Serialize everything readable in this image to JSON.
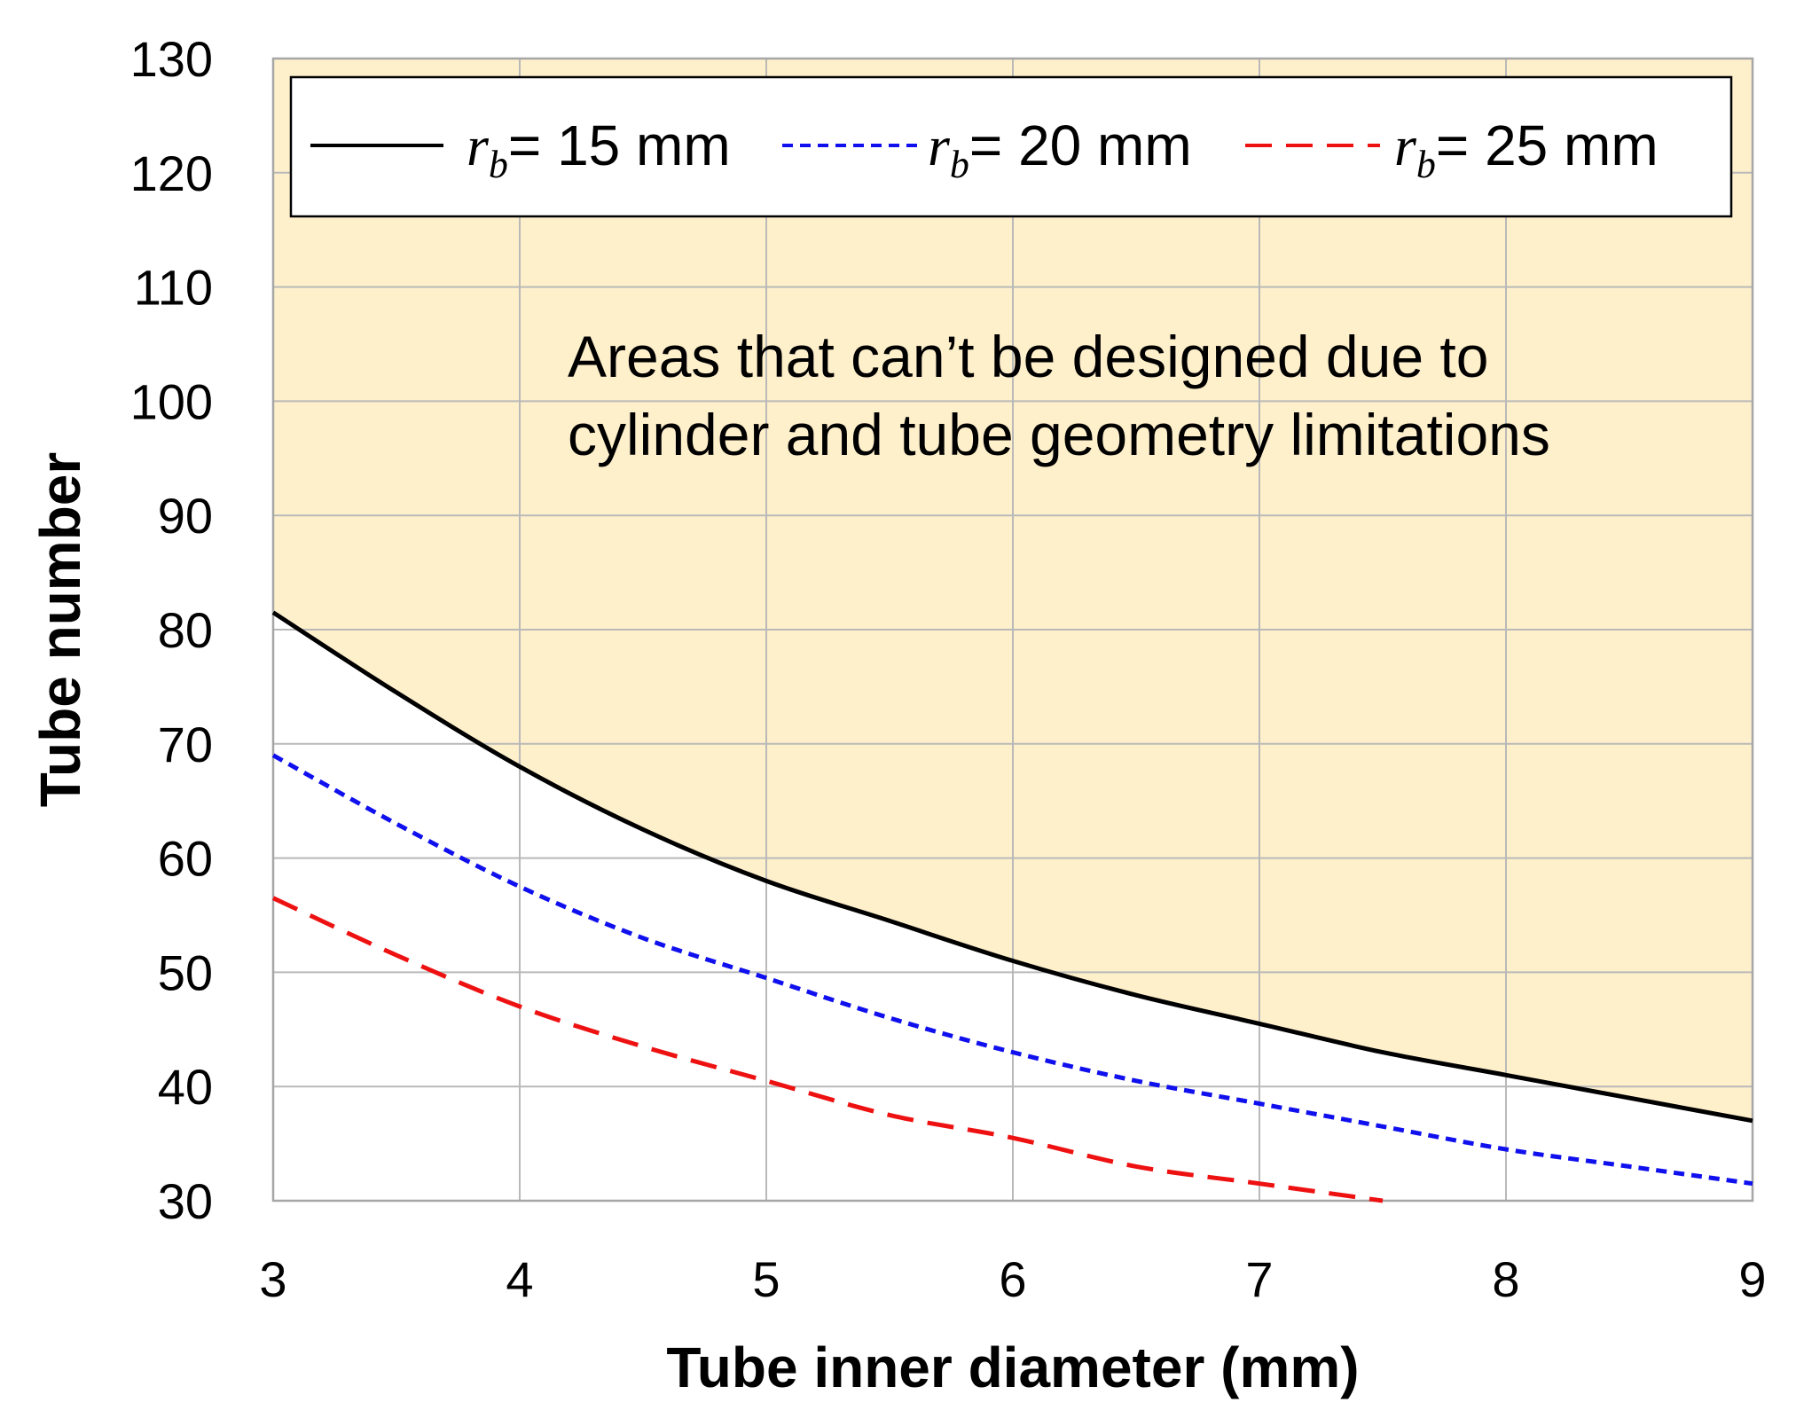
{
  "chart_data": {
    "type": "line",
    "title": "",
    "xlabel": "Tube inner diameter (mm)",
    "ylabel": "Tube number",
    "xlim": [
      3,
      9
    ],
    "ylim": [
      30,
      130
    ],
    "x_ticks": [
      "3",
      "4",
      "5",
      "6",
      "7",
      "8",
      "9"
    ],
    "y_ticks": [
      "30",
      "40",
      "50",
      "60",
      "70",
      "80",
      "90",
      "100",
      "110",
      "120",
      "130"
    ],
    "grid": true,
    "legend_position": "top",
    "series": [
      {
        "legend_prefix": "r",
        "legend_sub": "b",
        "legend_suffix": "= 15 mm",
        "color": "#000000",
        "style": "solid",
        "x": [
          3,
          3.5,
          4,
          4.5,
          5,
          5.5,
          6,
          6.5,
          7,
          7.5,
          8,
          8.5,
          9
        ],
        "y": [
          81.5,
          74.5,
          68.0,
          62.5,
          58.0,
          54.5,
          51.0,
          48.0,
          45.5,
          43.0,
          41.0,
          39.0,
          37.0
        ]
      },
      {
        "legend_prefix": "r",
        "legend_sub": "b",
        "legend_suffix": "= 20 mm",
        "color": "#1010ee",
        "style": "dotted",
        "x": [
          3,
          3.5,
          4,
          4.5,
          5,
          5.5,
          6,
          6.5,
          7,
          7.5,
          8,
          8.5,
          9
        ],
        "y": [
          69.0,
          63.0,
          57.5,
          53.0,
          49.5,
          46.0,
          43.0,
          40.5,
          38.5,
          36.5,
          34.5,
          33.0,
          31.5
        ]
      },
      {
        "legend_prefix": "r",
        "legend_sub": "b",
        "legend_suffix": "= 25 mm",
        "color": "#ee1111",
        "style": "dashed",
        "x": [
          3,
          3.5,
          4,
          4.5,
          5,
          5.5,
          6,
          6.5,
          7,
          7.5
        ],
        "y": [
          56.5,
          51.5,
          47.0,
          43.5,
          40.5,
          37.5,
          35.5,
          33.0,
          31.5,
          30.0
        ]
      }
    ],
    "shaded_region": {
      "fill_color": "#fff0cc",
      "bounded_below_by": "r_b = 15 mm"
    },
    "annotation": {
      "lines": [
        "Areas that can’t be designed due to",
        "cylinder and tube geometry limitations"
      ]
    }
  }
}
